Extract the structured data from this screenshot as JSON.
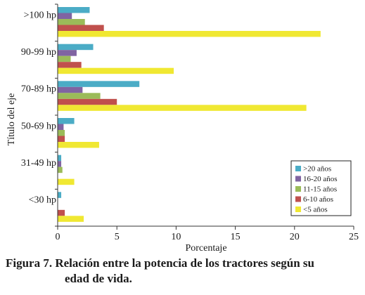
{
  "chart_data": {
    "type": "bar",
    "orientation": "horizontal",
    "categories": [
      ">100 hp",
      "90-99 hp",
      "70-89 hp",
      "50-69 hp",
      "31-49 hp",
      "<30 hp"
    ],
    "series": [
      {
        "name": ">20 años",
        "color": "#4bacc6",
        "values": [
          2.7,
          3.0,
          6.9,
          1.4,
          0.3,
          0.3
        ]
      },
      {
        "name": "16-20 años",
        "color": "#8064a2",
        "values": [
          1.2,
          1.6,
          2.1,
          0.5,
          0.3,
          0.0
        ]
      },
      {
        "name": "11-15 años",
        "color": "#9bbb59",
        "values": [
          2.3,
          1.1,
          3.6,
          0.6,
          0.4,
          0.0
        ]
      },
      {
        "name": "6-10 años",
        "color": "#c0504d",
        "values": [
          3.9,
          2.0,
          5.0,
          0.6,
          0.0,
          0.6
        ]
      },
      {
        "name": "<5 años",
        "color": "#f0e832",
        "values": [
          22.2,
          9.8,
          21.0,
          3.5,
          1.4,
          2.2
        ]
      }
    ],
    "xlim": [
      0,
      25
    ],
    "xticks": [
      "0",
      "5",
      "10",
      "15",
      "20",
      "25"
    ],
    "xlabel": "Porcentaje",
    "ylabel": "Título del eje",
    "legend_position": "bottom-right",
    "grid": false
  },
  "caption": {
    "line1": "Figura 7. Relación entre la potencia de los tractores según su",
    "line2": "edad de vida."
  }
}
